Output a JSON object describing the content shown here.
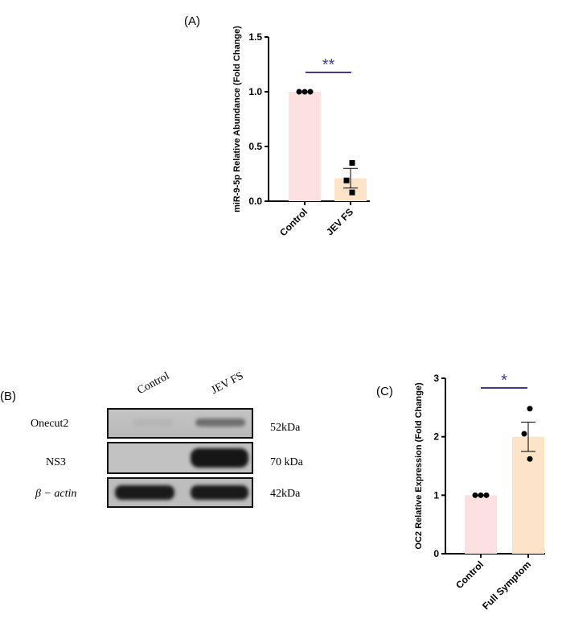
{
  "panels": {
    "a_label": "(A)",
    "b_label": "(B)",
    "c_label": "(C)"
  },
  "chart_data": [
    {
      "type": "bar",
      "panel": "A",
      "categories": [
        "Control",
        "JEV FS"
      ],
      "values": [
        1.0,
        0.21
      ],
      "error": [
        0.0,
        0.09
      ],
      "points": [
        [
          1.0,
          1.0,
          1.0
        ],
        [
          0.35,
          0.19,
          0.08
        ]
      ],
      "point_shapes": [
        "circle",
        "square"
      ],
      "ylabel": "miR-9-5p Relative Abundance (Fold Change)",
      "ylim": [
        0,
        1.5
      ],
      "yticks": [
        "0.0",
        "0.5",
        "1.0",
        "1.5"
      ],
      "significance": "**",
      "colors": [
        "#fde0e0",
        "#fde3c8"
      ],
      "sig_line_color": "#3b3b8f"
    },
    {
      "type": "bar",
      "panel": "C",
      "categories": [
        "Control",
        "Full Symptom"
      ],
      "values": [
        1.0,
        2.0
      ],
      "error": [
        0.0,
        0.25
      ],
      "points": [
        [
          1.0,
          1.0,
          1.0
        ],
        [
          2.48,
          2.05,
          1.62
        ]
      ],
      "point_shapes": [
        "circle",
        "circle"
      ],
      "ylabel": "OC2 Relative Expression (Fold Change)",
      "ylim": [
        0,
        3
      ],
      "yticks": [
        "0",
        "1",
        "2",
        "3"
      ],
      "significance": "*",
      "colors": [
        "#fde0e0",
        "#fde3c8"
      ],
      "sig_line_color": "#3b3b8f"
    }
  ],
  "blot": {
    "lanes": [
      "Control",
      "JEV FS"
    ],
    "rows": [
      {
        "label": "Onecut2",
        "kda": "52kDa"
      },
      {
        "label": "NS3",
        "kda": "70 kDa"
      },
      {
        "label": "β − actin",
        "kda": "42kDa"
      }
    ]
  }
}
